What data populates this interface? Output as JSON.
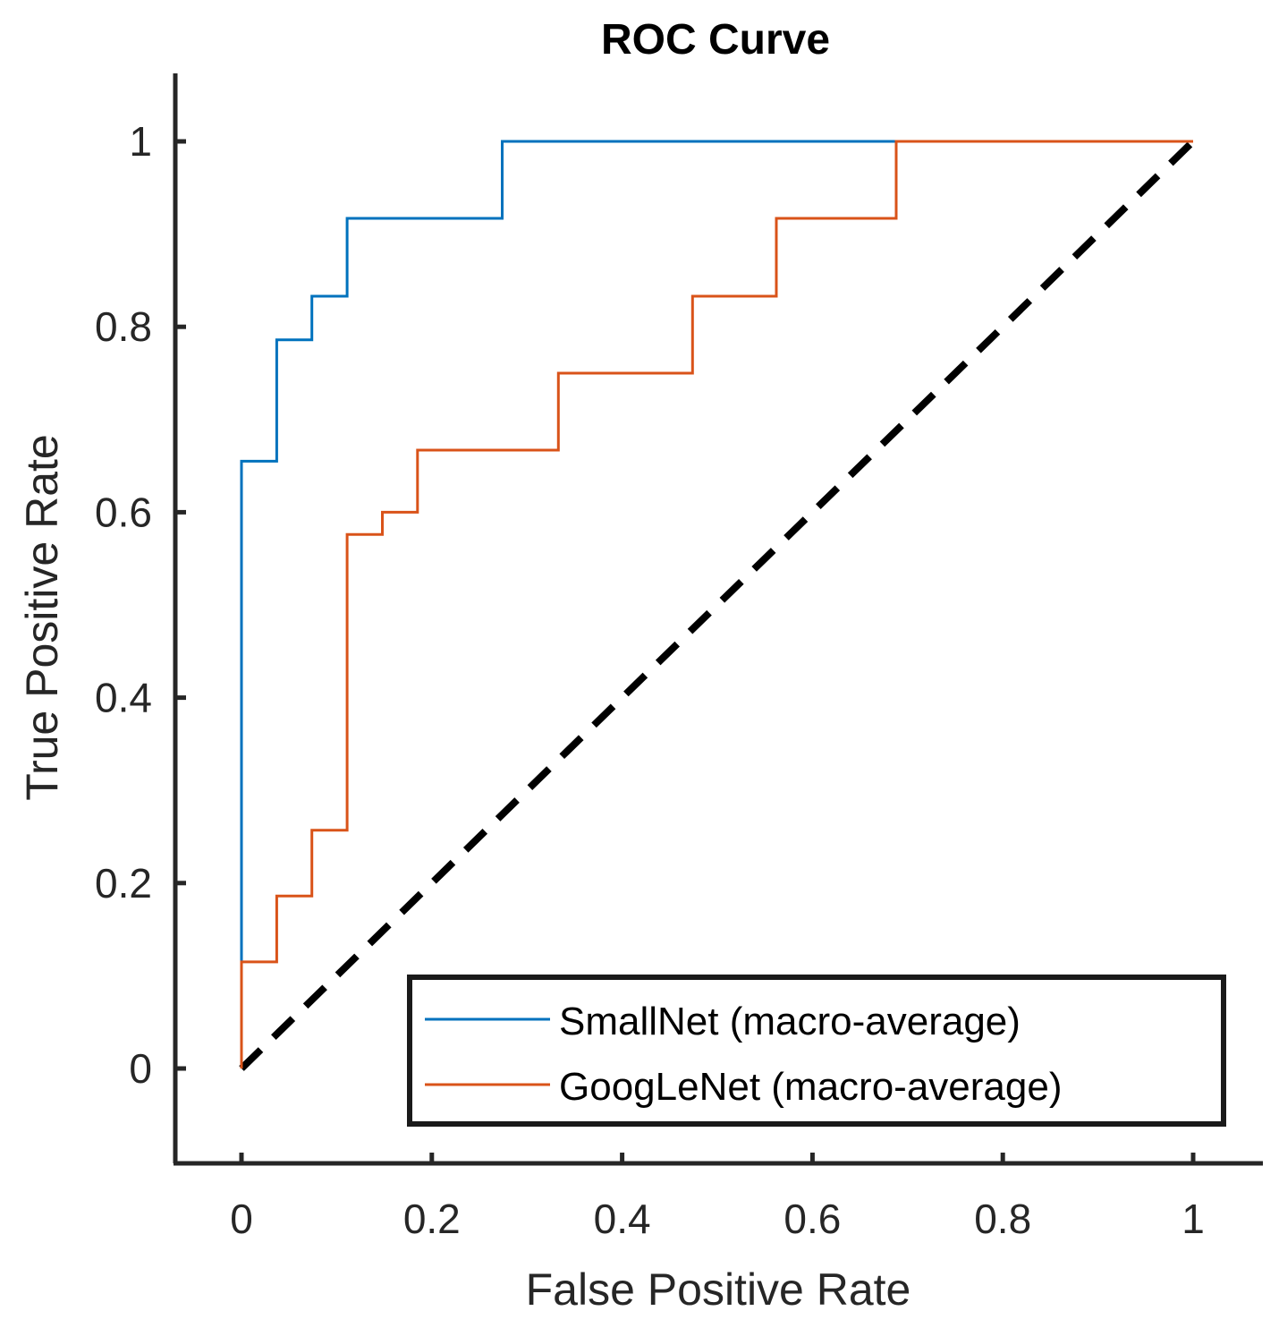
{
  "chart_data": {
    "type": "line",
    "title": "ROC Curve",
    "xlabel": "False Positive Rate",
    "ylabel": "True Positive Rate",
    "xlim": [
      -0.07,
      1.07
    ],
    "ylim": [
      -0.1,
      1.07
    ],
    "xticks": [
      0,
      0.2,
      0.4,
      0.6,
      0.8,
      1
    ],
    "yticks": [
      0,
      0.2,
      0.4,
      0.6,
      0.8,
      1
    ],
    "xtick_labels": [
      "0",
      "0.2",
      "0.4",
      "0.6",
      "0.8",
      "1"
    ],
    "ytick_labels": [
      "0",
      "0.2",
      "0.4",
      "0.6",
      "0.8",
      "1"
    ],
    "grid": false,
    "legend_position": "bottom-right",
    "series": [
      {
        "name": "SmallNet (macro-average)",
        "color": "#0072BD",
        "style": "solid",
        "x": [
          0,
          0,
          0,
          0.037,
          0.037,
          0.074,
          0.074,
          0.111,
          0.111,
          0.274,
          0.274,
          1.0
        ],
        "y": [
          0,
          0.115,
          0.655,
          0.655,
          0.786,
          0.786,
          0.833,
          0.833,
          0.917,
          0.917,
          1.0,
          1.0
        ]
      },
      {
        "name": "GoogLeNet (macro-average)",
        "color": "#D95319",
        "style": "solid",
        "x": [
          0,
          0,
          0.037,
          0.037,
          0.074,
          0.074,
          0.111,
          0.111,
          0.148,
          0.148,
          0.185,
          0.185,
          0.333,
          0.333,
          0.474,
          0.474,
          0.562,
          0.562,
          0.688,
          0.688,
          1.0
        ],
        "y": [
          0,
          0.115,
          0.115,
          0.186,
          0.186,
          0.257,
          0.257,
          0.576,
          0.576,
          0.6,
          0.6,
          0.667,
          0.667,
          0.75,
          0.75,
          0.833,
          0.833,
          0.917,
          0.917,
          1.0,
          1.0
        ]
      }
    ],
    "reference_line": {
      "color": "#000000",
      "style": "dashed",
      "x": [
        0,
        1
      ],
      "y": [
        0,
        1
      ]
    }
  }
}
